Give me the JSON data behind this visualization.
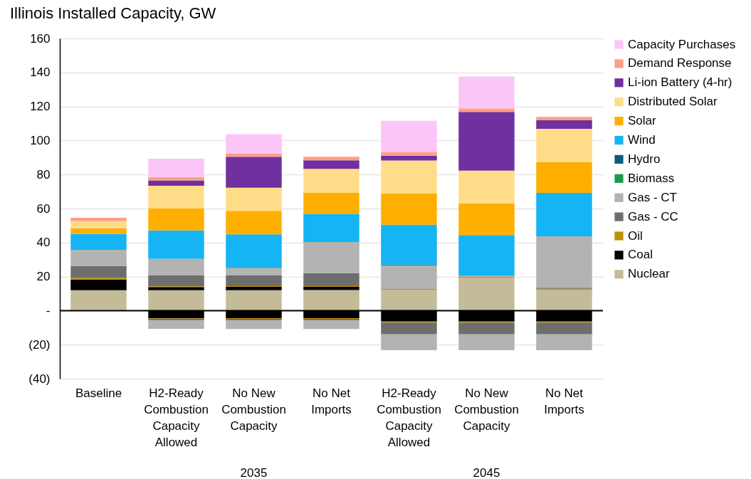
{
  "chart_data": {
    "type": "bar",
    "title": "Illinois Installed Capacity, GW",
    "stacked": true,
    "categories": [
      "Baseline",
      "H2-Ready Combustion Capacity Allowed",
      "No New Combustion Capacity",
      "No Net Imports",
      "H2-Ready Combustion Capacity Allowed",
      "No New Combustion Capacity",
      "No Net Imports"
    ],
    "annotations": [
      "2035",
      "2045"
    ],
    "series": [
      {
        "name": "Nuclear",
        "color": "#c4bc98",
        "values": [
          12,
          12,
          12,
          12.1,
          12.2,
          19.3,
          12.2
        ]
      },
      {
        "name": "Coal",
        "color": "#000000",
        "values": [
          6.3,
          1.9,
          2,
          1.9,
          null,
          null,
          null
        ]
      },
      {
        "name": "Oil",
        "color": "#bf8f00",
        "values": [
          0.9,
          0.4,
          0.4,
          0.4,
          0.5,
          0.5,
          0.6
        ]
      },
      {
        "name": "Gas - CC",
        "color": "#6e6e6e",
        "values": [
          7,
          6.4,
          6.3,
          7.6,
          null,
          null,
          0.7
        ]
      },
      {
        "name": "Gas - CT",
        "color": "#b3b3b3",
        "values": [
          9.6,
          9.8,
          4.4,
          18.2,
          13.9,
          0.9,
          30.2
        ]
      },
      {
        "name": "Biomass",
        "color": "#1f9a4a",
        "values": [
          0.4,
          null,
          0.5,
          0.5,
          null,
          null,
          null
        ]
      },
      {
        "name": "Hydro",
        "color": "#0b5d7a",
        "values": [
          null,
          null,
          null,
          null,
          0.5,
          null,
          null
        ]
      },
      {
        "name": "Wind",
        "color": "#15b4f5",
        "values": [
          8.9,
          16.6,
          19.2,
          16.2,
          23.4,
          23.7,
          25.5
        ]
      },
      {
        "name": "Solar",
        "color": "#ffaf00",
        "values": [
          3.4,
          12.9,
          13.8,
          12.5,
          18.4,
          18.6,
          18.2
        ]
      },
      {
        "name": "Distributed Solar",
        "color": "#ffdc87",
        "values": [
          4.1,
          13.4,
          13.6,
          13.9,
          19.3,
          19.3,
          19.5
        ]
      },
      {
        "name": "Li-ion Battery (4-hr)",
        "color": "#7030a0",
        "values": [
          null,
          3.1,
          18.2,
          5,
          2.9,
          34.5,
          5
        ]
      },
      {
        "name": "Demand Response",
        "color": "#ff9e88",
        "values": [
          2,
          2,
          2,
          2.1,
          2,
          2.1,
          2
        ]
      },
      {
        "name": "Capacity Purchases",
        "color": "#fbc6f7",
        "values": [
          null,
          10.8,
          11.3,
          null,
          18.5,
          18.7,
          null
        ]
      },
      {
        "color": "#000000",
        "values": [
          null,
          -4.4,
          -4.4,
          -4.4,
          -6.4,
          -6.4,
          -6.4
        ]
      },
      {
        "color": "#bf8f00",
        "values": [
          null,
          -0.4,
          -0.5,
          -0.5,
          -0.6,
          -0.6,
          -0.6
        ]
      },
      {
        "color": "#6e6e6e",
        "values": [
          null,
          -1,
          -0.9,
          -0.9,
          -7,
          -7,
          -7
        ]
      },
      {
        "color": "#b3b3b3",
        "values": [
          null,
          -4.9,
          -5,
          -5,
          -9.3,
          -9.3,
          -9.3
        ]
      }
    ],
    "ylim": [
      -40,
      160
    ],
    "yticks": [
      {
        "value": -40,
        "label": "(40)"
      },
      {
        "value": -20,
        "label": "(20)"
      },
      {
        "value": 0,
        "label": "-"
      },
      20,
      40,
      60,
      80,
      100,
      120,
      140,
      160
    ],
    "ref_lines": [
      {
        "axis": "y",
        "value": 0,
        "color": "#000000"
      }
    ],
    "grid": "y",
    "legend": "right"
  }
}
